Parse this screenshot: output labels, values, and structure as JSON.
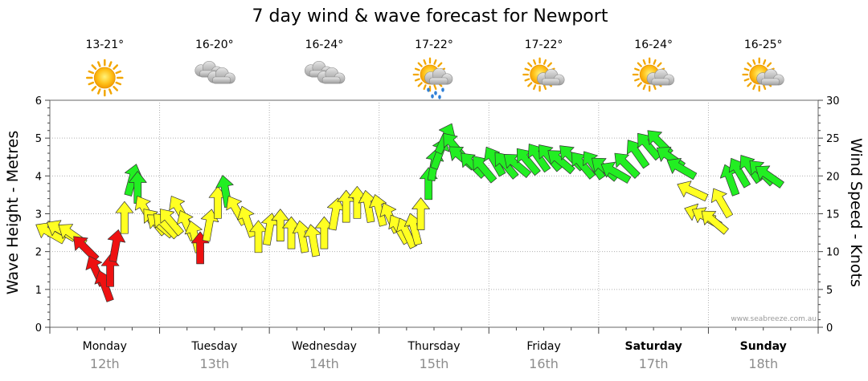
{
  "chart_data": {
    "type": "arrow-timeseries",
    "title": "7 day wind & wave forecast for Newport",
    "ylabel_left": "Wave Height - Metres",
    "ylabel_right": "Wind Speed - Knots",
    "ylim_left": [
      0,
      6
    ],
    "ylim_right": [
      0,
      30
    ],
    "yticks_left": [
      "0",
      "1",
      "2",
      "3",
      "4",
      "5",
      "6"
    ],
    "yticks_right": [
      "0",
      "5",
      "10",
      "15",
      "20",
      "25",
      "30"
    ],
    "grid": "dotted",
    "credit": "www.seabreeze.com.au",
    "colors": {
      "green": "#22ee22",
      "yellow": "#ffff22",
      "red": "#ee1111",
      "outline": "#333333"
    },
    "days": [
      {
        "name": "Monday",
        "date": "12th",
        "temp": "13-21°",
        "weather": "sunny-icon",
        "bold": false
      },
      {
        "name": "Tuesday",
        "date": "13th",
        "temp": "16-20°",
        "weather": "cloudy-icon",
        "bold": false
      },
      {
        "name": "Wednesday",
        "date": "14th",
        "temp": "16-24°",
        "weather": "cloudy-icon",
        "bold": false
      },
      {
        "name": "Thursday",
        "date": "15th",
        "temp": "17-22°",
        "weather": "sun-rain-icon",
        "bold": false
      },
      {
        "name": "Friday",
        "date": "16th",
        "temp": "17-22°",
        "weather": "partly-cloudy-icon",
        "bold": false
      },
      {
        "name": "Saturday",
        "date": "17th",
        "temp": "16-24°",
        "weather": "partly-cloudy-icon",
        "bold": true
      },
      {
        "name": "Sunday",
        "date": "18th",
        "temp": "16-25°",
        "weather": "partly-cloudy-icon",
        "bold": true
      }
    ],
    "wind_series": [
      {
        "day": 0.0,
        "knots": 12.5,
        "dir": -60,
        "color": "yellow"
      },
      {
        "day": 0.1,
        "knots": 12.8,
        "dir": -60,
        "color": "yellow"
      },
      {
        "day": 0.2,
        "knots": 12.3,
        "dir": -55,
        "color": "yellow"
      },
      {
        "day": 0.32,
        "knots": 10.5,
        "dir": -45,
        "color": "red"
      },
      {
        "day": 0.42,
        "knots": 7.5,
        "dir": -25,
        "color": "red"
      },
      {
        "day": 0.5,
        "knots": 5.5,
        "dir": -20,
        "color": "red"
      },
      {
        "day": 0.55,
        "knots": 7.5,
        "dir": 0,
        "color": "red"
      },
      {
        "day": 0.6,
        "knots": 10.8,
        "dir": 10,
        "color": "red"
      },
      {
        "day": 0.68,
        "knots": 14.5,
        "dir": 0,
        "color": "yellow"
      },
      {
        "day": 0.75,
        "knots": 19.5,
        "dir": 15,
        "color": "green"
      },
      {
        "day": 0.8,
        "knots": 18.5,
        "dir": 0,
        "color": "green"
      },
      {
        "day": 0.87,
        "knots": 15.5,
        "dir": -30,
        "color": "yellow"
      },
      {
        "day": 0.95,
        "knots": 14.0,
        "dir": -40,
        "color": "yellow"
      },
      {
        "day": 1.0,
        "knots": 13.5,
        "dir": -50,
        "color": "yellow"
      },
      {
        "day": 1.05,
        "knots": 13.5,
        "dir": -45,
        "color": "yellow"
      },
      {
        "day": 1.1,
        "knots": 14.0,
        "dir": -40,
        "color": "yellow"
      },
      {
        "day": 1.18,
        "knots": 15.5,
        "dir": -30,
        "color": "yellow"
      },
      {
        "day": 1.25,
        "knots": 13.5,
        "dir": -25,
        "color": "yellow"
      },
      {
        "day": 1.32,
        "knots": 12.0,
        "dir": -15,
        "color": "yellow"
      },
      {
        "day": 1.37,
        "knots": 10.5,
        "dir": 0,
        "color": "red"
      },
      {
        "day": 1.45,
        "knots": 13.5,
        "dir": 10,
        "color": "yellow"
      },
      {
        "day": 1.53,
        "knots": 16.5,
        "dir": 0,
        "color": "yellow"
      },
      {
        "day": 1.6,
        "knots": 18.0,
        "dir": -10,
        "color": "green"
      },
      {
        "day": 1.7,
        "knots": 15.5,
        "dir": -30,
        "color": "yellow"
      },
      {
        "day": 1.8,
        "knots": 14.0,
        "dir": -20,
        "color": "yellow"
      },
      {
        "day": 1.9,
        "knots": 12.0,
        "dir": 0,
        "color": "yellow"
      },
      {
        "day": 2.0,
        "knots": 13.0,
        "dir": 10,
        "color": "yellow"
      },
      {
        "day": 2.1,
        "knots": 13.5,
        "dir": 0,
        "color": "yellow"
      },
      {
        "day": 2.2,
        "knots": 12.5,
        "dir": 0,
        "color": "yellow"
      },
      {
        "day": 2.3,
        "knots": 12.0,
        "dir": -10,
        "color": "yellow"
      },
      {
        "day": 2.4,
        "knots": 11.5,
        "dir": -10,
        "color": "yellow"
      },
      {
        "day": 2.5,
        "knots": 12.5,
        "dir": 0,
        "color": "yellow"
      },
      {
        "day": 2.6,
        "knots": 15.0,
        "dir": 10,
        "color": "yellow"
      },
      {
        "day": 2.7,
        "knots": 16.0,
        "dir": 0,
        "color": "yellow"
      },
      {
        "day": 2.8,
        "knots": 16.5,
        "dir": 0,
        "color": "yellow"
      },
      {
        "day": 2.9,
        "knots": 16.0,
        "dir": -10,
        "color": "yellow"
      },
      {
        "day": 3.0,
        "knots": 15.5,
        "dir": -15,
        "color": "yellow"
      },
      {
        "day": 3.1,
        "knots": 14.5,
        "dir": -25,
        "color": "yellow"
      },
      {
        "day": 3.18,
        "knots": 13.0,
        "dir": -30,
        "color": "yellow"
      },
      {
        "day": 3.25,
        "knots": 12.5,
        "dir": -25,
        "color": "yellow"
      },
      {
        "day": 3.32,
        "knots": 13.0,
        "dir": -15,
        "color": "yellow"
      },
      {
        "day": 3.38,
        "knots": 15.0,
        "dir": 0,
        "color": "yellow"
      },
      {
        "day": 3.45,
        "knots": 19.0,
        "dir": 0,
        "color": "green"
      },
      {
        "day": 3.5,
        "knots": 21.5,
        "dir": 10,
        "color": "green"
      },
      {
        "day": 3.55,
        "knots": 23.0,
        "dir": 20,
        "color": "green"
      },
      {
        "day": 3.6,
        "knots": 25.0,
        "dir": 25,
        "color": "green"
      },
      {
        "day": 3.68,
        "knots": 24.0,
        "dir": -40,
        "color": "green"
      },
      {
        "day": 3.75,
        "knots": 22.5,
        "dir": -50,
        "color": "green"
      },
      {
        "day": 3.85,
        "knots": 21.5,
        "dir": -45,
        "color": "green"
      },
      {
        "day": 3.95,
        "knots": 21.0,
        "dir": -40,
        "color": "green"
      },
      {
        "day": 4.05,
        "knots": 22.0,
        "dir": -30,
        "color": "green"
      },
      {
        "day": 4.15,
        "knots": 21.5,
        "dir": -40,
        "color": "green"
      },
      {
        "day": 4.25,
        "knots": 21.5,
        "dir": -50,
        "color": "green"
      },
      {
        "day": 4.35,
        "knots": 22.0,
        "dir": -40,
        "color": "green"
      },
      {
        "day": 4.45,
        "knots": 22.5,
        "dir": -35,
        "color": "green"
      },
      {
        "day": 4.55,
        "knots": 22.5,
        "dir": -40,
        "color": "green"
      },
      {
        "day": 4.65,
        "knots": 22.0,
        "dir": -50,
        "color": "green"
      },
      {
        "day": 4.75,
        "knots": 22.5,
        "dir": -45,
        "color": "green"
      },
      {
        "day": 4.85,
        "knots": 21.5,
        "dir": -40,
        "color": "green"
      },
      {
        "day": 4.95,
        "knots": 21.5,
        "dir": -35,
        "color": "green"
      },
      {
        "day": 5.05,
        "knots": 21.0,
        "dir": -50,
        "color": "green"
      },
      {
        "day": 5.15,
        "knots": 20.5,
        "dir": -60,
        "color": "green"
      },
      {
        "day": 5.25,
        "knots": 21.5,
        "dir": -45,
        "color": "green"
      },
      {
        "day": 5.35,
        "knots": 23.0,
        "dir": -35,
        "color": "green"
      },
      {
        "day": 5.45,
        "knots": 24.0,
        "dir": -40,
        "color": "green"
      },
      {
        "day": 5.55,
        "knots": 24.5,
        "dir": -45,
        "color": "green"
      },
      {
        "day": 5.65,
        "knots": 22.5,
        "dir": -55,
        "color": "green"
      },
      {
        "day": 5.75,
        "knots": 21.0,
        "dir": -60,
        "color": "green"
      },
      {
        "day": 5.85,
        "knots": 18.0,
        "dir": -65,
        "color": "yellow"
      },
      {
        "day": 5.92,
        "knots": 15.0,
        "dir": -70,
        "color": "yellow"
      },
      {
        "day": 5.98,
        "knots": 14.5,
        "dir": -60,
        "color": "yellow"
      },
      {
        "day": 6.05,
        "knots": 14.0,
        "dir": -50,
        "color": "yellow"
      },
      {
        "day": 6.12,
        "knots": 16.5,
        "dir": -30,
        "color": "yellow"
      },
      {
        "day": 6.2,
        "knots": 19.5,
        "dir": -20,
        "color": "green"
      },
      {
        "day": 6.28,
        "knots": 20.5,
        "dir": -30,
        "color": "green"
      },
      {
        "day": 6.38,
        "knots": 21.0,
        "dir": -35,
        "color": "green"
      },
      {
        "day": 6.48,
        "knots": 20.5,
        "dir": -45,
        "color": "green"
      },
      {
        "day": 6.55,
        "knots": 20.0,
        "dir": -55,
        "color": "green"
      }
    ]
  }
}
